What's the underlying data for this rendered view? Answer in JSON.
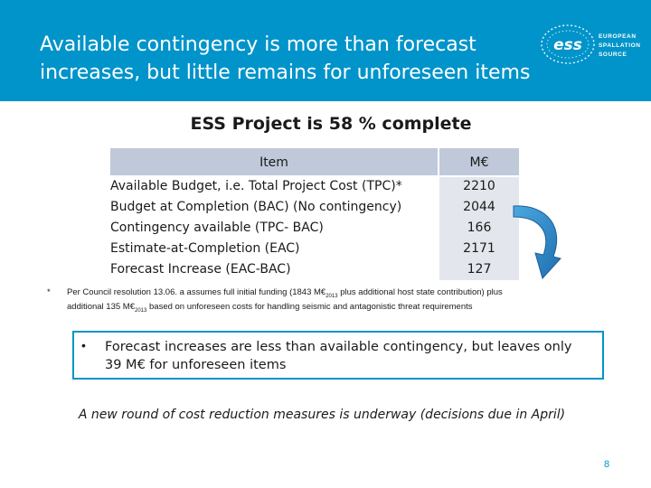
{
  "header": {
    "title_line1": "Available contingency is more than forecast",
    "title_line2": "increases, but little remains for unforeseen items",
    "bg_color": "#0094ca"
  },
  "logo": {
    "mark": "ess",
    "line1": "EUROPEAN",
    "line2": "SPALLATION",
    "line3": "SOURCE"
  },
  "subtitle": "ESS Project is 58 % complete",
  "table": {
    "col_item": "Item",
    "col_value": "M€",
    "rows": [
      {
        "label": "Available Budget, i.e. Total Project Cost (TPC)*",
        "value": "2210"
      },
      {
        "label": "Budget at Completion (BAC) (No contingency)",
        "value": "2044"
      },
      {
        "label": "Contingency available (TPC- BAC)",
        "value": "166"
      },
      {
        "label": "Estimate-at-Completion (EAC)",
        "value": "2171"
      },
      {
        "label": "Forecast Increase (EAC-BAC)",
        "value": "127"
      }
    ]
  },
  "footnote": {
    "star": "*",
    "line1_a": "Per Council resolution 13.06. a assumes full initial funding (1843 M€",
    "line1_sub": "2013",
    "line1_b": " plus additional host state contribution) plus",
    "line2_a": "additional 135 M€",
    "line2_sub": "2013",
    "line2_b": " based on unforeseen costs for handling seismic and antagonistic threat requirements"
  },
  "callout": {
    "bullet": "•",
    "line1": "Forecast increases are less than available contingency, but leaves only",
    "line2": "39 M€ for unforeseen items"
  },
  "note": "A new round of cost reduction measures is underway (decisions due in April)",
  "page_number": "8"
}
